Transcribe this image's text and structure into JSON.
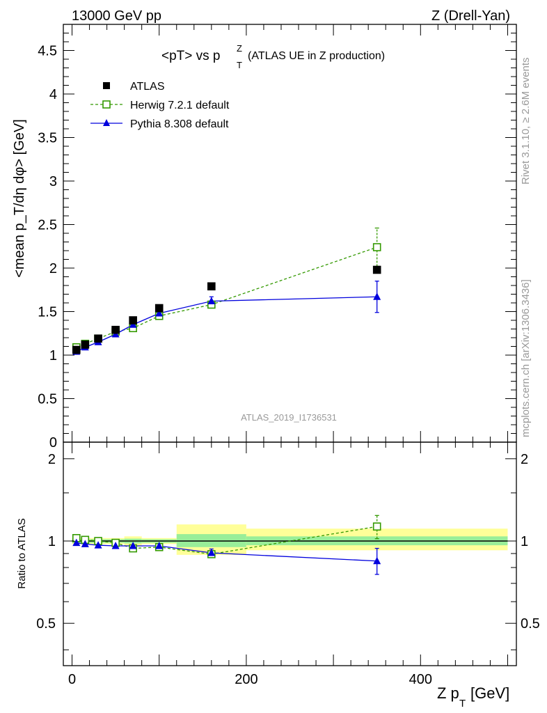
{
  "header": {
    "left": "13000 GeV pp",
    "right": "Z (Drell-Yan)"
  },
  "side_labels": {
    "rivet": "Rivet 3.1.10, ≥ 2.6M events",
    "mcplots": "mcplots.cern.ch [arXiv:1306.3436]"
  },
  "colors": {
    "data": "#000000",
    "herwig": "#339900",
    "pythia": "#0000dd",
    "band_inner": "#99ee99",
    "band_outer": "#ffff99",
    "watermark": "#999999"
  },
  "chart_data": [
    {
      "type": "scatter",
      "panel": "main",
      "title_main": "<pT> vs p",
      "title_sup": "Z",
      "title_sub": "T",
      "title_rest": "(ATLAS UE in Z production)",
      "ylabel": "<mean p_T/dη dφ> [GeV]",
      "ylim": [
        0,
        4.8
      ],
      "y_ticks": [
        0,
        0.5,
        1,
        1.5,
        2,
        2.5,
        3,
        3.5,
        4,
        4.5
      ],
      "y_tick_labels": [
        "0",
        "0.5",
        "1",
        "1.5",
        "2",
        "2.5",
        "3",
        "3.5",
        "4",
        "4.5"
      ],
      "watermark": "ATLAS_2019_I1736531",
      "legend_position": "top-left",
      "x": [
        5,
        15,
        30,
        50,
        70,
        100,
        160,
        350
      ],
      "series": [
        {
          "name": "ATLAS",
          "key": "data",
          "marker": "filled-square",
          "values": [
            1.06,
            1.12,
            1.19,
            1.29,
            1.4,
            1.54,
            1.79,
            1.98
          ]
        },
        {
          "name": "Herwig 7.2.1 default",
          "key": "herwig",
          "marker": "open-square",
          "line": "dashed",
          "values": [
            1.09,
            1.13,
            1.19,
            1.27,
            1.31,
            1.45,
            1.58,
            2.24
          ],
          "err_last": [
            2.02,
            2.46
          ]
        },
        {
          "name": "Pythia 8.308 default",
          "key": "pythia",
          "marker": "filled-triangle",
          "line": "solid",
          "values": [
            1.04,
            1.09,
            1.15,
            1.24,
            1.35,
            1.48,
            1.62,
            1.67
          ],
          "err_last": [
            1.49,
            1.85
          ],
          "err_pt7": [
            1.57,
            1.67
          ]
        }
      ]
    },
    {
      "type": "scatter",
      "panel": "ratio",
      "ylabel": "Ratio to ATLAS",
      "ylim": [
        0.35,
        2.3
      ],
      "y_scale": "log",
      "y_ticks": [
        0.5,
        1,
        2
      ],
      "y_tick_labels": [
        "0.5",
        "1",
        "2"
      ],
      "xlabel_main": "Z p",
      "xlabel_sub": "T",
      "xlabel_unit": "[GeV]",
      "xlim": [
        -10,
        510
      ],
      "x_ticks": [
        0,
        200,
        400
      ],
      "x_tick_labels": [
        "0",
        "200",
        "400"
      ],
      "bands": [
        {
          "x0": 0,
          "x1": 10,
          "inner": [
            0.985,
            1.015
          ],
          "outer": [
            0.975,
            1.025
          ]
        },
        {
          "x0": 10,
          "x1": 20,
          "inner": [
            0.985,
            1.015
          ],
          "outer": [
            0.975,
            1.025
          ]
        },
        {
          "x0": 20,
          "x1": 40,
          "inner": [
            0.985,
            1.015
          ],
          "outer": [
            0.975,
            1.025
          ]
        },
        {
          "x0": 40,
          "x1": 60,
          "inner": [
            0.985,
            1.015
          ],
          "outer": [
            0.975,
            1.025
          ]
        },
        {
          "x0": 60,
          "x1": 80,
          "inner": [
            0.98,
            1.02
          ],
          "outer": [
            0.96,
            1.04
          ]
        },
        {
          "x0": 80,
          "x1": 120,
          "inner": [
            0.985,
            1.015
          ],
          "outer": [
            0.975,
            1.025
          ]
        },
        {
          "x0": 120,
          "x1": 200,
          "inner": [
            0.95,
            1.06
          ],
          "outer": [
            0.89,
            1.15
          ]
        },
        {
          "x0": 200,
          "x1": 500,
          "inner": [
            0.965,
            1.04
          ],
          "outer": [
            0.925,
            1.11
          ]
        }
      ],
      "x": [
        5,
        15,
        30,
        50,
        70,
        100,
        160,
        350
      ],
      "series": [
        {
          "name": "Herwig 7.2.1 default",
          "key": "herwig",
          "values": [
            1.025,
            1.01,
            1.0,
            0.985,
            0.94,
            0.95,
            0.895,
            1.13
          ],
          "err_last": [
            1.02,
            1.24
          ]
        },
        {
          "name": "Pythia 8.308 default",
          "key": "pythia",
          "values": [
            0.985,
            0.975,
            0.965,
            0.96,
            0.96,
            0.96,
            0.905,
            0.845
          ],
          "err_last": [
            0.755,
            0.94
          ],
          "err_pt7": [
            0.88,
            0.935
          ]
        }
      ]
    }
  ]
}
